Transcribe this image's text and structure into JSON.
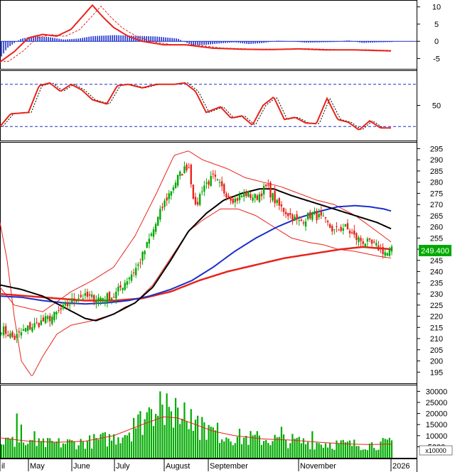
{
  "chart_data": [
    {
      "type": "line",
      "panel": "macd",
      "y_ticks": [
        "10",
        "5",
        "0",
        "-5"
      ],
      "ylim": [
        -8,
        12
      ],
      "grid": false,
      "series_colors": {
        "macd": "#e8231a",
        "signal": "#e8231a",
        "histogram": "#1a2fcc",
        "zero": "#1a2fcc"
      }
    },
    {
      "type": "line",
      "panel": "rsi",
      "y_ticks": [
        "50"
      ],
      "ylim": [
        0,
        100
      ],
      "reference_lines": [
        20,
        80
      ],
      "series_colors": {
        "rsi": "#e8231a",
        "signal": "#000000",
        "reference": "#1a2fcc"
      }
    },
    {
      "type": "candlestick",
      "panel": "price",
      "y_ticks": [
        "295",
        "290",
        "285",
        "280",
        "275",
        "270",
        "265",
        "260",
        "255",
        "250",
        "245",
        "240",
        "235",
        "230",
        "225",
        "220",
        "215",
        "210",
        "205",
        "200",
        "195"
      ],
      "ylim": [
        190,
        298
      ],
      "last_price": "249.400",
      "last_price_color": "#00aa00",
      "x_months": [
        "il",
        "May",
        "June",
        "July",
        "August",
        "September",
        "November",
        "2026"
      ],
      "overlays": [
        "bollinger-bands",
        "ma-red",
        "ma-black",
        "ma-blue"
      ],
      "colors": {
        "up": "#00aa00",
        "down": "#e8231a",
        "bollinger": "#e8231a",
        "ma_red": "#e8231a",
        "ma_black": "#000000",
        "ma_blue": "#1a2fcc"
      }
    },
    {
      "type": "bar",
      "panel": "volume",
      "y_ticks": [
        "30000",
        "25000",
        "20000",
        "15000",
        "10000",
        "5000"
      ],
      "y_unit": "x10000",
      "ylim": [
        0,
        33000
      ],
      "colors": {
        "bar": "#00aa00",
        "average": "#e8231a"
      }
    }
  ]
}
